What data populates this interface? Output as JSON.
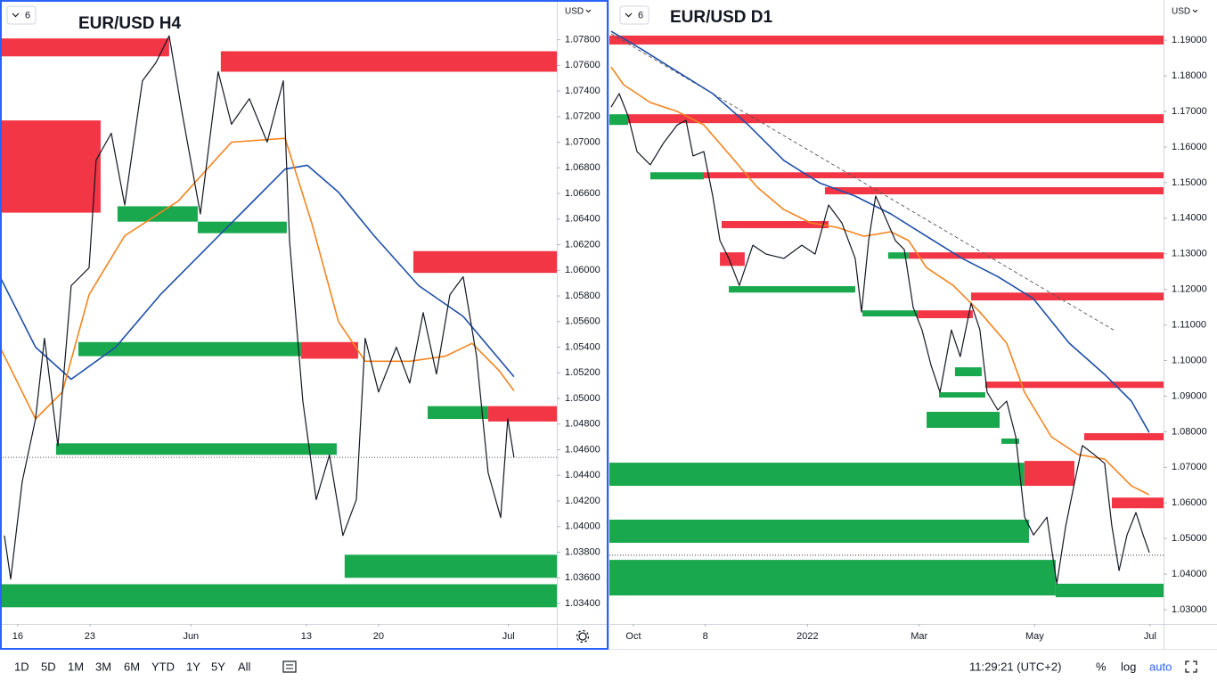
{
  "chart_data": [
    {
      "type": "line",
      "title": "EUR/USD H4",
      "badge": "6",
      "currency": "USD",
      "xlim": [
        -1.23,
        37.35
      ],
      "ylim": [
        1.0324,
        1.0811
      ],
      "xticks": [
        {
          "value": 0,
          "label": "16"
        },
        {
          "value": 5,
          "label": "23"
        },
        {
          "value": 12,
          "label": "Jun"
        },
        {
          "value": 20,
          "label": "13"
        },
        {
          "value": 25,
          "label": "20"
        },
        {
          "value": 34,
          "label": "Jul"
        }
      ],
      "yticks": [
        {
          "value": 1.034,
          "label": "1.03400"
        },
        {
          "value": 1.036,
          "label": "1.03600"
        },
        {
          "value": 1.038,
          "label": "1.03800"
        },
        {
          "value": 1.04,
          "label": "1.04000"
        },
        {
          "value": 1.042,
          "label": "1.04200"
        },
        {
          "value": 1.044,
          "label": "1.04400"
        },
        {
          "value": 1.046,
          "label": "1.04600"
        },
        {
          "value": 1.048,
          "label": "1.04800"
        },
        {
          "value": 1.05,
          "label": "1.05000"
        },
        {
          "value": 1.052,
          "label": "1.05200"
        },
        {
          "value": 1.054,
          "label": "1.05400"
        },
        {
          "value": 1.056,
          "label": "1.05600"
        },
        {
          "value": 1.058,
          "label": "1.05800"
        },
        {
          "value": 1.06,
          "label": "1.06000"
        },
        {
          "value": 1.062,
          "label": "1.06200"
        },
        {
          "value": 1.064,
          "label": "1.06400"
        },
        {
          "value": 1.066,
          "label": "1.06600"
        },
        {
          "value": 1.068,
          "label": "1.06800"
        },
        {
          "value": 1.07,
          "label": "1.07000"
        },
        {
          "value": 1.072,
          "label": "1.07200"
        },
        {
          "value": 1.074,
          "label": "1.07400"
        },
        {
          "value": 1.076,
          "label": "1.07600"
        },
        {
          "value": 1.078,
          "label": "1.07800"
        }
      ],
      "zones": [
        {
          "color": "#f23645",
          "x": [
            -1.23,
            10.49
          ],
          "y": [
            1.0767,
            1.0781
          ]
        },
        {
          "color": "#f23645",
          "x": [
            14.07,
            37.35
          ],
          "y": [
            1.0755,
            1.0771
          ]
        },
        {
          "color": "#f23645",
          "x": [
            -1.23,
            5.74
          ],
          "y": [
            1.0645,
            1.0717
          ]
        },
        {
          "color": "#1aa84e",
          "x": [
            6.91,
            12.47
          ],
          "y": [
            1.0638,
            1.065
          ]
        },
        {
          "color": "#1aa84e",
          "x": [
            12.47,
            18.64
          ],
          "y": [
            1.0629,
            1.0638
          ]
        },
        {
          "color": "#f23645",
          "x": [
            27.41,
            37.35
          ],
          "y": [
            1.0598,
            1.0615
          ]
        },
        {
          "color": "#1aa84e",
          "x": [
            4.2,
            19.63
          ],
          "y": [
            1.0533,
            1.0544
          ]
        },
        {
          "color": "#f23645",
          "x": [
            19.63,
            23.58
          ],
          "y": [
            1.0531,
            1.0544
          ]
        },
        {
          "color": "#1aa84e",
          "x": [
            28.4,
            32.59
          ],
          "y": [
            1.0484,
            1.0494
          ]
        },
        {
          "color": "#f23645",
          "x": [
            32.59,
            37.35
          ],
          "y": [
            1.0482,
            1.0494
          ]
        },
        {
          "color": "#1aa84e",
          "x": [
            2.65,
            22.1
          ],
          "y": [
            1.0456,
            1.0465
          ]
        },
        {
          "color": "#1aa84e",
          "x": [
            22.65,
            37.35
          ],
          "y": [
            1.036,
            1.0378
          ]
        },
        {
          "color": "#1aa84e",
          "x": [
            -1.23,
            37.35
          ],
          "y": [
            1.0337,
            1.0355
          ]
        }
      ],
      "series": [
        {
          "color": "#1e4fa8",
          "x": [
            -1.23,
            1.23,
            3.7,
            6.79,
            9.88,
            12.96,
            16.05,
            18.52,
            20.06,
            22.22,
            24.69,
            27.78,
            30.86,
            34.38
          ],
          "values": [
            1.0595,
            1.054,
            1.0515,
            1.054,
            1.0581,
            1.0616,
            1.0651,
            1.0679,
            1.0682,
            1.0661,
            1.0627,
            1.0588,
            1.0564,
            1.0517
          ]
        },
        {
          "color": "#f5841f",
          "x": [
            -1.23,
            1.23,
            3.09,
            4.94,
            7.41,
            11.11,
            14.81,
            18.52,
            20.37,
            22.22,
            24.07,
            27.16,
            29.63,
            31.48,
            33.33,
            34.38
          ],
          "values": [
            1.054,
            1.0484,
            1.0505,
            1.0581,
            1.0627,
            1.0654,
            1.07,
            1.0703,
            1.0637,
            1.056,
            1.0529,
            1.0529,
            1.0533,
            1.0543,
            1.0522,
            1.0506
          ]
        },
        {
          "color": "#131722",
          "x": [
            -0.93,
            -0.49,
            0.31,
            1.23,
            1.85,
            2.78,
            3.7,
            4.94,
            5.43,
            6.48,
            7.41,
            8.64,
            9.57,
            10.49,
            11.42,
            12.65,
            13.89,
            14.81,
            16.05,
            17.28,
            18.4,
            18.83,
            19.75,
            20.68,
            21.6,
            22.53,
            23.46,
            24.07,
            25.0,
            26.23,
            27.16,
            28.09,
            29.01,
            29.94,
            30.86,
            31.79,
            32.59,
            33.46,
            33.95,
            34.38
          ],
          "values": [
            1.0393,
            1.0359,
            1.0435,
            1.0484,
            1.0547,
            1.0463,
            1.0588,
            1.0602,
            1.0686,
            1.0707,
            1.0651,
            1.0748,
            1.0762,
            1.0783,
            1.0721,
            1.0644,
            1.0755,
            1.0714,
            1.0734,
            1.07,
            1.0748,
            1.0623,
            1.0498,
            1.0421,
            1.0456,
            1.0393,
            1.0421,
            1.0547,
            1.0505,
            1.054,
            1.0512,
            1.0567,
            1.0519,
            1.0581,
            1.0595,
            1.0533,
            1.0442,
            1.0407,
            1.0484,
            1.0454
          ]
        }
      ],
      "last_price": 1.0454
    },
    {
      "type": "line",
      "title": "EUR/USD D1",
      "badge": "6",
      "currency": "USD",
      "xlim": [
        -12.7,
        280.1
      ],
      "ylim": [
        1.026,
        1.2013
      ],
      "xticks": [
        {
          "value": 0,
          "label": "Oct"
        },
        {
          "value": 38,
          "label": "8"
        },
        {
          "value": 92,
          "label": "2022"
        },
        {
          "value": 151,
          "label": "Mar"
        },
        {
          "value": 212,
          "label": "May"
        },
        {
          "value": 273,
          "label": "Jul"
        }
      ],
      "yticks": [
        {
          "value": 1.03,
          "label": "1.03000"
        },
        {
          "value": 1.04,
          "label": "1.04000"
        },
        {
          "value": 1.05,
          "label": "1.05000"
        },
        {
          "value": 1.06,
          "label": "1.06000"
        },
        {
          "value": 1.07,
          "label": "1.07000"
        },
        {
          "value": 1.08,
          "label": "1.08000"
        },
        {
          "value": 1.09,
          "label": "1.09000"
        },
        {
          "value": 1.1,
          "label": "1.10000"
        },
        {
          "value": 1.11,
          "label": "1.11000"
        },
        {
          "value": 1.12,
          "label": "1.12000"
        },
        {
          "value": 1.13,
          "label": "1.13000"
        },
        {
          "value": 1.14,
          "label": "1.14000"
        },
        {
          "value": 1.15,
          "label": "1.15000"
        },
        {
          "value": 1.16,
          "label": "1.16000"
        },
        {
          "value": 1.17,
          "label": "1.17000"
        },
        {
          "value": 1.18,
          "label": "1.18000"
        },
        {
          "value": 1.19,
          "label": "1.19000"
        }
      ],
      "zones": [
        {
          "color": "#f23645",
          "x": [
            -12.7,
            280.1
          ],
          "y": [
            1.1888,
            1.1913
          ]
        },
        {
          "color": "#f23645",
          "x": [
            -2.8,
            280.1
          ],
          "y": [
            1.1667,
            1.1692
          ]
        },
        {
          "color": "#1aa84e",
          "x": [
            -12.7,
            -2.8
          ],
          "y": [
            1.1662,
            1.1692
          ]
        },
        {
          "color": "#1aa84e",
          "x": [
            8.9,
            37.2
          ],
          "y": [
            1.1509,
            1.1529
          ]
        },
        {
          "color": "#f23645",
          "x": [
            37.2,
            280.1
          ],
          "y": [
            1.1512,
            1.1529
          ]
        },
        {
          "color": "#f23645",
          "x": [
            101.2,
            280.1
          ],
          "y": [
            1.1467,
            1.1487
          ]
        },
        {
          "color": "#f23645",
          "x": [
            46.6,
            103.1
          ],
          "y": [
            1.1372,
            1.1392
          ]
        },
        {
          "color": "#f23645",
          "x": [
            45.7,
            58.8
          ],
          "y": [
            1.1266,
            1.1304
          ]
        },
        {
          "color": "#1aa84e",
          "x": [
            50.4,
            117.2
          ],
          "y": [
            1.1191,
            1.1209
          ]
        },
        {
          "color": "#f23645",
          "x": [
            145.4,
            280.1
          ],
          "y": [
            1.1286,
            1.1304
          ]
        },
        {
          "color": "#1aa84e",
          "x": [
            134.6,
            145.4
          ],
          "y": [
            1.1286,
            1.1304
          ]
        },
        {
          "color": "#f23645",
          "x": [
            178.4,
            280.1
          ],
          "y": [
            1.1169,
            1.1191
          ]
        },
        {
          "color": "#1aa84e",
          "x": [
            121.0,
            150.2
          ],
          "y": [
            1.1124,
            1.1141
          ]
        },
        {
          "color": "#f23645",
          "x": [
            150.2,
            179.3
          ],
          "y": [
            1.1119,
            1.1141
          ]
        },
        {
          "color": "#1aa84e",
          "x": [
            169.9,
            184.0
          ],
          "y": [
            1.0956,
            1.0981
          ]
        },
        {
          "color": "#1aa84e",
          "x": [
            161.5,
            185.9
          ],
          "y": [
            1.0896,
            1.0911
          ]
        },
        {
          "color": "#f23645",
          "x": [
            185.9,
            280.1
          ],
          "y": [
            1.0923,
            1.0941
          ]
        },
        {
          "color": "#1aa84e",
          "x": [
            154.9,
            193.5
          ],
          "y": [
            1.0811,
            1.0856
          ]
        },
        {
          "color": "#1aa84e",
          "x": [
            194.4,
            203.8
          ],
          "y": [
            1.0766,
            1.0781
          ]
        },
        {
          "color": "#f23645",
          "x": [
            238.2,
            280.1
          ],
          "y": [
            1.0776,
            1.0796
          ]
        },
        {
          "color": "#1aa84e",
          "x": [
            -12.7,
            206.6
          ],
          "y": [
            1.0648,
            1.0713
          ]
        },
        {
          "color": "#f23645",
          "x": [
            206.6,
            233.0
          ],
          "y": [
            1.0648,
            1.0718
          ]
        },
        {
          "color": "#1aa84e",
          "x": [
            -12.7,
            209.0
          ],
          "y": [
            1.0488,
            1.0553
          ]
        },
        {
          "color": "#f23645",
          "x": [
            252.8,
            280.1
          ],
          "y": [
            1.0585,
            1.0615
          ]
        },
        {
          "color": "#1aa84e",
          "x": [
            -12.7,
            223.1
          ],
          "y": [
            1.034,
            1.044
          ]
        },
        {
          "color": "#1aa84e",
          "x": [
            223.1,
            280.1
          ],
          "y": [
            1.0335,
            1.0373
          ]
        }
      ],
      "series": [
        {
          "color": "#555555",
          "dashed": true,
          "x": [
            -11.8,
            253.7
          ],
          "values": [
            1.1918,
            1.1086
          ]
        },
        {
          "color": "#1e4fa8",
          "x": [
            -11.8,
            4.2,
            23.1,
            41.9,
            60.7,
            79.5,
            98.4,
            117.2,
            136.0,
            154.9,
            173.7,
            192.5,
            211.3,
            230.2,
            249.0,
            263.1,
            272.5
          ],
          "values": [
            1.1925,
            1.1875,
            1.1812,
            1.175,
            1.1662,
            1.1562,
            1.1499,
            1.1462,
            1.1412,
            1.1349,
            1.1287,
            1.1236,
            1.1174,
            1.1049,
            1.0961,
            1.0886,
            1.0798
          ]
        },
        {
          "color": "#f5841f",
          "x": [
            -11.8,
            -5.2,
            8.9,
            23.1,
            37.2,
            51.3,
            65.4,
            79.5,
            93.7,
            107.8,
            121.9,
            136.0,
            145.4,
            154.9,
            169.0,
            183.1,
            197.2,
            206.6,
            220.8,
            234.9,
            249.0,
            263.1,
            272.5
          ],
          "values": [
            1.1825,
            1.1775,
            1.1725,
            1.17,
            1.1662,
            1.1575,
            1.1487,
            1.1424,
            1.1387,
            1.1374,
            1.1349,
            1.1362,
            1.1337,
            1.1261,
            1.1211,
            1.1136,
            1.1049,
            1.0911,
            1.0786,
            1.0736,
            1.0723,
            1.0648,
            1.0623
          ]
        },
        {
          "color": "#131722",
          "x": [
            -11.8,
            -7.5,
            -2.8,
            1.9,
            8.9,
            16.0,
            23.1,
            27.8,
            31.5,
            37.2,
            41.9,
            45.7,
            50.4,
            56.0,
            63.1,
            70.1,
            79.5,
            89.0,
            96.0,
            103.1,
            110.1,
            117.2,
            120.5,
            124.3,
            128.0,
            132.3,
            138.4,
            143.1,
            147.8,
            152.5,
            157.3,
            162.0,
            168.0,
            172.7,
            178.4,
            183.1,
            186.9,
            192.5,
            197.2,
            202.0,
            206.7,
            211.4,
            218.5,
            223.7,
            228.4,
            233.2,
            237.2,
            243.4,
            249.0,
            252.8,
            256.6,
            260.8,
            265.5,
            269.3,
            272.6
          ],
          "values": [
            1.1712,
            1.175,
            1.1687,
            1.1587,
            1.155,
            1.1612,
            1.1662,
            1.1675,
            1.1575,
            1.1587,
            1.1462,
            1.1337,
            1.1287,
            1.1211,
            1.1324,
            1.1299,
            1.1287,
            1.1324,
            1.1299,
            1.1437,
            1.1387,
            1.1287,
            1.1136,
            1.1337,
            1.1462,
            1.1412,
            1.1337,
            1.1312,
            1.1149,
            1.1086,
            1.0986,
            1.0911,
            1.1086,
            1.1011,
            1.1161,
            1.1086,
            1.0911,
            1.0861,
            1.0886,
            1.0786,
            1.056,
            1.051,
            1.056,
            1.0373,
            1.0535,
            1.0661,
            1.0761,
            1.0736,
            1.0711,
            1.0535,
            1.041,
            1.051,
            1.0573,
            1.051,
            1.046
          ]
        }
      ],
      "last_price": 1.0453
    }
  ],
  "toolbar": {
    "ranges": [
      "1D",
      "5D",
      "1M",
      "3M",
      "6M",
      "YTD",
      "1Y",
      "5Y",
      "All"
    ],
    "clock": "11:29:21 (UTC+2)",
    "options": [
      "%",
      "log",
      "auto"
    ]
  }
}
